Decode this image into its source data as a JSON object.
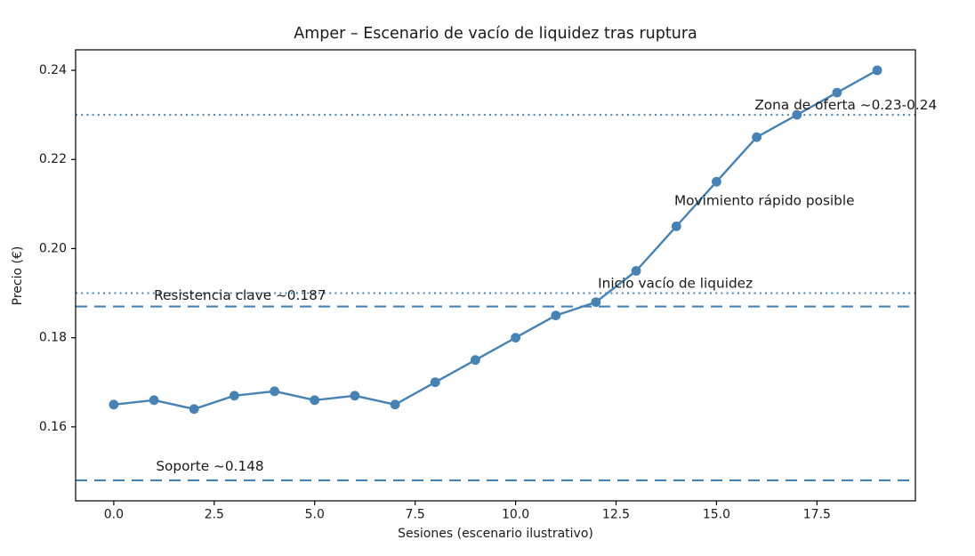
{
  "figure": {
    "background": "#ffffff",
    "colors": {
      "accent": "#4682b4",
      "text": "#1a1a1a",
      "spine": "#000000"
    }
  },
  "chart_data": {
    "type": "line",
    "title": "Amper – Escenario de vacío de liquidez tras ruptura",
    "xlabel": "Sesiones (escenario ilustrativo)",
    "ylabel": "Precio (€)",
    "x": [
      0,
      1,
      2,
      3,
      4,
      5,
      6,
      7,
      8,
      9,
      10,
      11,
      12,
      13,
      14,
      15,
      16,
      17,
      18,
      19
    ],
    "series": [
      {
        "name": "Precio",
        "color": "#4682b4",
        "marker": "circle",
        "values": [
          0.165,
          0.166,
          0.164,
          0.167,
          0.168,
          0.166,
          0.167,
          0.165,
          0.17,
          0.175,
          0.18,
          0.185,
          0.188,
          0.195,
          0.205,
          0.215,
          0.225,
          0.23,
          0.235,
          0.24
        ]
      }
    ],
    "xlim": [
      -0.95,
      19.95
    ],
    "ylim": [
      0.1434,
      0.2446
    ],
    "xticks": {
      "values": [
        0,
        2.5,
        5,
        7.5,
        10,
        12.5,
        15,
        17.5
      ],
      "labels": [
        "0.0",
        "2.5",
        "5.0",
        "7.5",
        "10.0",
        "12.5",
        "15.0",
        "17.5"
      ]
    },
    "yticks": {
      "values": [
        0.16,
        0.18,
        0.2,
        0.22,
        0.24
      ],
      "labels": [
        "0.16",
        "0.18",
        "0.20",
        "0.22",
        "0.24"
      ]
    },
    "grid": false,
    "legend": null,
    "reference_lines": [
      {
        "name": "zona-oferta-dotted-line",
        "y": 0.23,
        "style": "dotted",
        "color": "#4682b4"
      },
      {
        "name": "zona-resistencia-dotted-line",
        "y": 0.19,
        "style": "dotted",
        "color": "#4682b4"
      },
      {
        "name": "resistencia-clave-dashed-line",
        "y": 0.187,
        "style": "dashed",
        "color": "#4682b4"
      },
      {
        "name": "soporte-dashed-line",
        "y": 0.148,
        "style": "dashed",
        "color": "#4682b4"
      }
    ],
    "annotations": [
      {
        "name": "annotation-resistencia",
        "text": "Resistencia clave ~0.187",
        "x": 1.0,
        "y": 0.1895
      },
      {
        "name": "annotation-soporte",
        "text": "Soporte ~0.148",
        "x": 1.05,
        "y": 0.1512
      },
      {
        "name": "annotation-inicio-vacio",
        "text": "Inicio vacío de liquidez",
        "x": 12.05,
        "y": 0.1922
      },
      {
        "name": "annotation-movimiento-rapido",
        "text": "Movimiento rápido posible",
        "x": 13.95,
        "y": 0.2108
      },
      {
        "name": "annotation-zona-oferta",
        "text": "Zona de oferta ~0.23-0.24",
        "x": 15.95,
        "y": 0.2322
      }
    ]
  }
}
